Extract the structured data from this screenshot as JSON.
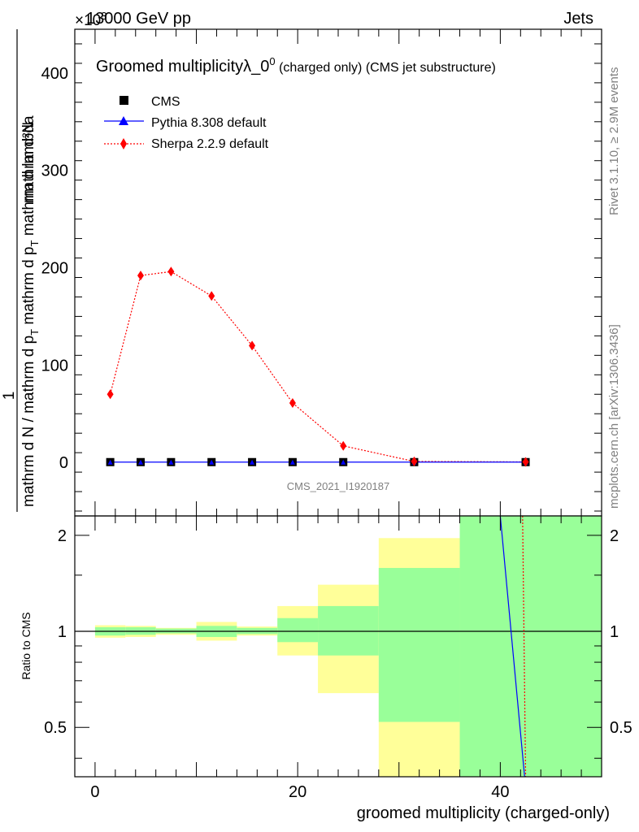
{
  "header": {
    "left": "13000 GeV pp",
    "right": "Jets",
    "exponent": "×10",
    "exponent_power": "3"
  },
  "side": {
    "rivet": "Rivet 3.1.10, ≥ 2.9M events",
    "mcplots": "mcplots.cern.ch [arXiv:1306.3436]"
  },
  "main_plot": {
    "title": "Groomed multiplicity",
    "title_symbol": "λ_0",
    "title_sup": "0",
    "title_suffix": " (charged only) (CMS jet substructure)",
    "ylabel_top": "mathrm d²N",
    "ylabel_bottom": "mathrm d N / mathrm d p",
    "ylabel_num": "1",
    "ylabel_sub_text": "mathrm d p",
    "ylabel_sub_T": "T",
    "ylabel_mid": " mathrm d lambda",
    "ylabel_denom": "mathrm d N / mathrm d p",
    "ylabel_denom2": " mathrm d p",
    "ylabel_denom3": " mathrm d lambda",
    "watermark": "CMS_2021_I1920187",
    "yticks": [
      "0",
      "100",
      "200",
      "300",
      "400"
    ]
  },
  "legend": {
    "cms": "CMS",
    "pythia": "Pythia 8.308 default",
    "sherpa": "Sherpa 2.2.9 default"
  },
  "ratio_plot": {
    "ylabel": "Ratio to CMS",
    "yticks": [
      "0.5",
      "1",
      "2"
    ],
    "xlabel": "groomed multiplicity (charged-only)",
    "xticks": [
      "0",
      "20",
      "40"
    ]
  },
  "colors": {
    "cms": "#000000",
    "pythia": "#0000ff",
    "sherpa": "#ff0000",
    "band_inner": "#99ff99",
    "band_outer": "#ffff99"
  },
  "chart_data": {
    "type": "scatter",
    "x": [
      1.5,
      4.5,
      7.5,
      11.5,
      15.5,
      19.5,
      24.5,
      31.5,
      42.5
    ],
    "xlim": [
      -2,
      50
    ],
    "ylim": [
      -55,
      445
    ],
    "y_multiplier": "×10^3",
    "series": [
      {
        "name": "CMS",
        "values": [
          0.3,
          0.3,
          0.3,
          0.3,
          0.3,
          0.3,
          0.3,
          0.3,
          0.3
        ],
        "marker": "square"
      },
      {
        "name": "Pythia 8.308 default",
        "values": [
          0.3,
          0.3,
          0.3,
          0.3,
          0.3,
          0.3,
          0.3,
          0.3,
          0.3
        ],
        "marker": "triangle"
      },
      {
        "name": "Sherpa 2.2.9 default",
        "values": [
          70,
          192,
          196,
          171,
          120,
          61,
          17,
          1,
          0.5
        ],
        "marker": "diamond"
      }
    ],
    "ratio": {
      "ylabel": "Ratio to CMS",
      "ylim": [
        0.35,
        2.3
      ],
      "log_scale": true,
      "bins": [
        {
          "lo": 0,
          "hi": 3,
          "inner": [
            0.97,
            1.03
          ],
          "outer": [
            0.955,
            1.045
          ]
        },
        {
          "lo": 3,
          "hi": 6,
          "inner": [
            0.975,
            1.03
          ],
          "outer": [
            0.96,
            1.04
          ]
        },
        {
          "lo": 6,
          "hi": 10,
          "inner": [
            0.985,
            1.02
          ],
          "outer": [
            0.975,
            1.025
          ]
        },
        {
          "lo": 10,
          "hi": 14,
          "inner": [
            0.96,
            1.04
          ],
          "outer": [
            0.935,
            1.07
          ]
        },
        {
          "lo": 14,
          "hi": 18,
          "inner": [
            0.98,
            1.025
          ],
          "outer": [
            0.97,
            1.035
          ]
        },
        {
          "lo": 18,
          "hi": 22,
          "inner": [
            0.925,
            1.1
          ],
          "outer": [
            0.84,
            1.2
          ]
        },
        {
          "lo": 22,
          "hi": 28,
          "inner": [
            0.84,
            1.2
          ],
          "outer": [
            0.64,
            1.4
          ]
        },
        {
          "lo": 28,
          "hi": 36,
          "inner": [
            0.52,
            1.58
          ],
          "outer": [
            0.35,
            1.96
          ]
        },
        {
          "lo": 36,
          "hi": 50,
          "inner": [
            0.35,
            2.3
          ],
          "outer": [
            0.35,
            2.3
          ]
        }
      ],
      "pythia_line": {
        "x": [
          40,
          42.4
        ],
        "y": [
          2.3,
          0.35
        ]
      },
      "sherpa_line": {
        "x": [
          42.2,
          42.5
        ],
        "y": [
          2.3,
          0.35
        ]
      }
    }
  }
}
